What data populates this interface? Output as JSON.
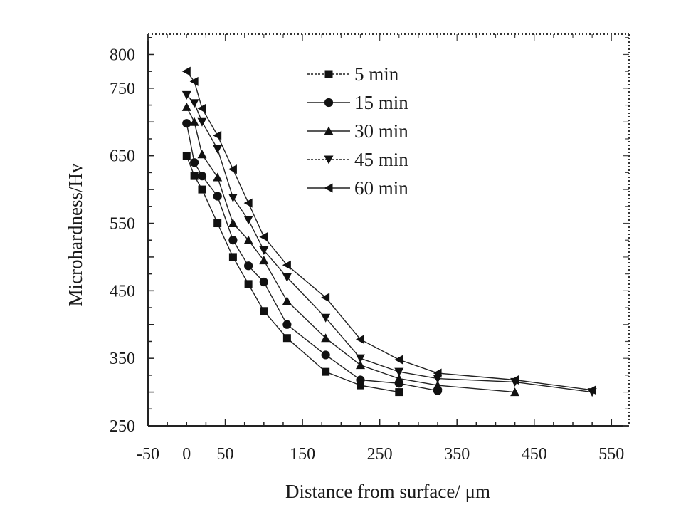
{
  "chart_data": {
    "type": "line",
    "title": "",
    "xlabel": "Distance from surface/ μm",
    "ylabel": "Microhardness/Hv",
    "xlim": [
      -50,
      570
    ],
    "ylim": [
      250,
      830
    ],
    "xticks": [
      -50,
      0,
      50,
      150,
      250,
      350,
      450,
      550
    ],
    "yticks": [
      250,
      350,
      450,
      550,
      650,
      750,
      800
    ],
    "legend_position": "top-center",
    "grid": false,
    "series": [
      {
        "name": "5 min",
        "marker": "square",
        "points": [
          [
            0,
            650
          ],
          [
            10,
            620
          ],
          [
            20,
            600
          ],
          [
            40,
            550
          ],
          [
            60,
            500
          ],
          [
            80,
            460
          ],
          [
            100,
            420
          ],
          [
            130,
            380
          ],
          [
            180,
            330
          ],
          [
            225,
            310
          ],
          [
            275,
            300
          ]
        ]
      },
      {
        "name": "15 min",
        "marker": "circle",
        "points": [
          [
            0,
            698
          ],
          [
            10,
            640
          ],
          [
            20,
            620
          ],
          [
            40,
            590
          ],
          [
            60,
            525
          ],
          [
            80,
            487
          ],
          [
            100,
            463
          ],
          [
            130,
            400
          ],
          [
            180,
            355
          ],
          [
            225,
            318
          ],
          [
            275,
            313
          ],
          [
            325,
            302
          ]
        ]
      },
      {
        "name": "30 min",
        "marker": "triangle-up",
        "points": [
          [
            0,
            722
          ],
          [
            10,
            700
          ],
          [
            20,
            652
          ],
          [
            40,
            618
          ],
          [
            60,
            550
          ],
          [
            80,
            525
          ],
          [
            100,
            495
          ],
          [
            130,
            435
          ],
          [
            180,
            380
          ],
          [
            225,
            340
          ],
          [
            275,
            320
          ],
          [
            325,
            310
          ],
          [
            425,
            300
          ]
        ]
      },
      {
        "name": "45 min",
        "marker": "triangle-down",
        "points": [
          [
            0,
            740
          ],
          [
            10,
            728
          ],
          [
            20,
            700
          ],
          [
            40,
            660
          ],
          [
            60,
            588
          ],
          [
            80,
            555
          ],
          [
            100,
            510
          ],
          [
            130,
            470
          ],
          [
            180,
            410
          ],
          [
            225,
            350
          ],
          [
            275,
            330
          ],
          [
            325,
            320
          ],
          [
            425,
            315
          ],
          [
            525,
            300
          ]
        ]
      },
      {
        "name": "60 min",
        "marker": "triangle-left",
        "points": [
          [
            0,
            775
          ],
          [
            10,
            760
          ],
          [
            20,
            720
          ],
          [
            40,
            680
          ],
          [
            60,
            630
          ],
          [
            80,
            580
          ],
          [
            100,
            530
          ],
          [
            130,
            488
          ],
          [
            180,
            440
          ],
          [
            225,
            378
          ],
          [
            275,
            348
          ],
          [
            325,
            328
          ],
          [
            425,
            318
          ],
          [
            525,
            303
          ]
        ]
      }
    ]
  }
}
